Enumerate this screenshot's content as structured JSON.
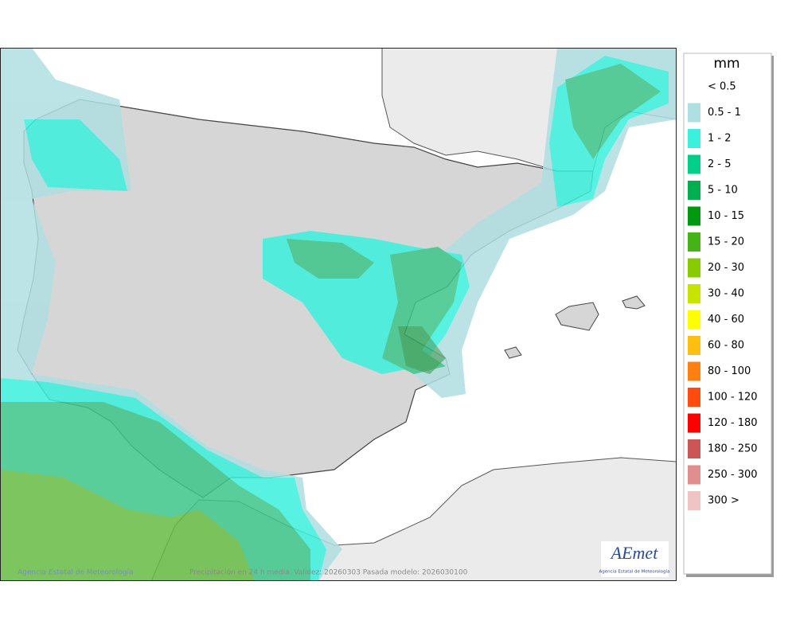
{
  "legend": {
    "title": "mm",
    "items": [
      {
        "label": "< 0.5"
      },
      {
        "label": "0.5 - 1",
        "color": "#b0dfe2"
      },
      {
        "label": "1 - 2",
        "color": "#3cf0de"
      },
      {
        "label": "2 - 5",
        "color": "#00cf8a"
      },
      {
        "label": "5 - 10",
        "color": "#00b050"
      },
      {
        "label": "10 - 15",
        "color": "#009a10"
      },
      {
        "label": "15 - 20",
        "color": "#44b316"
      },
      {
        "label": "20 - 30",
        "color": "#88cc00"
      },
      {
        "label": "30 - 40",
        "color": "#c6e400"
      },
      {
        "label": "40 - 60",
        "color": "#ffff00"
      },
      {
        "label": "60 - 80",
        "color": "#ffbf10"
      },
      {
        "label": "80 - 100",
        "color": "#ff8010"
      },
      {
        "label": "100 - 120",
        "color": "#ff4a10"
      },
      {
        "label": "120 - 180",
        "color": "#ff0000"
      },
      {
        "label": "180 - 250",
        "color": "#cc5555"
      },
      {
        "label": "250 - 300",
        "color": "#e08e8e"
      },
      {
        "label": "300 >",
        "color": "#f0c4c4"
      }
    ]
  },
  "footer": {
    "source": "Agencia Estatal de Meteorología",
    "caption": "Precipitación en 24 h media. Validez: 20260303 Pasada modelo: 2026030100"
  },
  "logo": {
    "name": "AEmet",
    "subtitle": "Agencia Estatal de Meteorología"
  }
}
